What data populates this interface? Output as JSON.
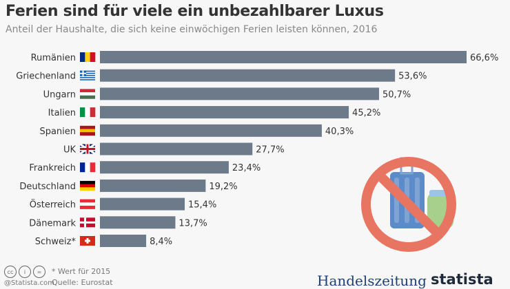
{
  "chart_data": {
    "type": "bar",
    "orientation": "horizontal",
    "title": "Ferien sind für viele ein unbezahlbarer Luxus",
    "subtitle": "Anteil der Haushalte, die sich keine einwöchigen Ferien leisten können, 2016",
    "categories": [
      "Rumänien",
      "Griechenland",
      "Ungarn",
      "Italien",
      "Spanien",
      "UK",
      "Frankreich",
      "Deutschland",
      "Österreich",
      "Dänemark",
      "Schweiz*"
    ],
    "values": [
      66.6,
      53.6,
      50.7,
      45.2,
      40.3,
      27.7,
      23.4,
      19.2,
      15.4,
      13.7,
      8.4
    ],
    "value_labels": [
      "66,6%",
      "53,6%",
      "50,7%",
      "45,2%",
      "40,3%",
      "27,7%",
      "23,4%",
      "19,2%",
      "15,4%",
      "13,7%",
      "8,4%"
    ],
    "xlim": [
      0,
      70
    ],
    "bar_color": "#6c7a89"
  },
  "footer": {
    "note": "* Wert für 2015",
    "source": "Quelle: Eurostat",
    "copyright": "@Statista.com",
    "cc": [
      "cc",
      "i",
      "="
    ],
    "brand1": "Handelszeitung",
    "brand2": "statista"
  },
  "colors": {
    "prohibit": "#e87462",
    "suitcase": "#5b8cc9",
    "backpack": "#a8d08d"
  }
}
